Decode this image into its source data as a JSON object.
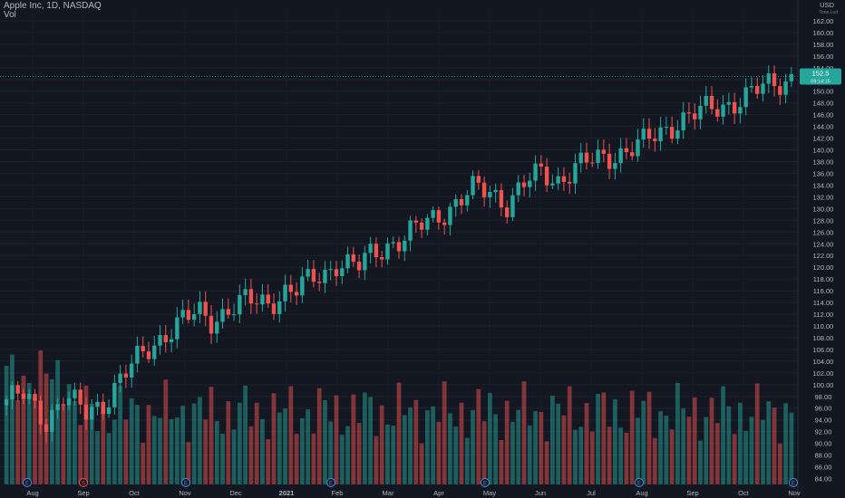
{
  "legend": {
    "title": "Apple Inc, 1D, NASDAQ",
    "volume_label": "Vol"
  },
  "axis": {
    "currency": "USD",
    "currency_sub": "Tone.Lod",
    "last_price": "152.5",
    "last_price_sub": "09:14:15"
  },
  "chart_data": {
    "type": "candlestick",
    "title": "Apple Inc, 1D, NASDAQ",
    "ylabel": "USD",
    "ylim": [
      83,
      164
    ],
    "y_ticks": [
      84.0,
      86.0,
      88.0,
      90.0,
      92.0,
      94.0,
      96.0,
      98.0,
      100.0,
      102.0,
      104.0,
      106.0,
      108.0,
      110.0,
      112.0,
      114.0,
      116.0,
      118.0,
      120.0,
      122.0,
      124.0,
      126.0,
      128.0,
      130.0,
      132.0,
      134.0,
      136.0,
      138.0,
      140.0,
      142.0,
      144.0,
      146.0,
      148.0,
      150.0,
      152.0,
      154.0,
      156.0,
      158.0,
      160.0,
      162.0
    ],
    "x_labels": [
      "Aug",
      "Sep",
      "Oct",
      "Nov",
      "Dec",
      "2021",
      "Feb",
      "Mar",
      "Apr",
      "May",
      "Jun",
      "Jul",
      "Aug",
      "Sep",
      "Oct",
      "Nov"
    ],
    "up_color": "#26a69a",
    "down_color": "#ef5350",
    "last_price": 152.5,
    "anchors": [
      [
        0,
        97.5
      ],
      [
        3,
        98
      ],
      [
        5,
        96
      ],
      [
        7,
        94
      ],
      [
        10,
        98
      ],
      [
        14,
        95
      ],
      [
        17,
        97
      ],
      [
        20,
        101
      ],
      [
        23,
        104
      ],
      [
        26,
        107
      ],
      [
        28,
        109
      ],
      [
        31,
        111
      ],
      [
        34,
        112
      ],
      [
        36,
        111
      ],
      [
        39,
        113
      ],
      [
        42,
        114
      ],
      [
        46,
        114
      ],
      [
        49,
        116
      ],
      [
        51,
        116
      ],
      [
        54,
        118
      ],
      [
        56,
        119
      ],
      [
        58,
        121
      ],
      [
        62,
        120
      ],
      [
        64,
        122
      ],
      [
        67,
        124
      ],
      [
        70,
        125
      ],
      [
        73,
        127
      ],
      [
        76,
        129
      ],
      [
        79,
        131
      ],
      [
        82,
        133
      ],
      [
        85,
        133
      ],
      [
        88,
        131
      ],
      [
        91,
        134
      ],
      [
        94,
        136
      ],
      [
        97,
        135
      ],
      [
        100,
        137
      ],
      [
        103,
        138
      ],
      [
        106,
        139
      ],
      [
        109,
        140
      ],
      [
        112,
        141
      ],
      [
        115,
        143
      ],
      [
        118,
        145
      ],
      [
        121,
        146
      ],
      [
        124,
        147
      ],
      [
        127,
        148
      ],
      [
        130,
        149
      ],
      [
        134,
        151
      ],
      [
        138,
        152.5
      ]
    ],
    "volume_ylim": [
      0,
      110
    ],
    "event_markers": [
      {
        "x_label": "Aug",
        "symbol": "E",
        "color": "#4c8fd8"
      },
      {
        "x_label": "Sep",
        "symbol": "S",
        "color": "#ef5350"
      },
      {
        "x_label": "Nov",
        "symbol": "E",
        "color": "#4c8fd8"
      },
      {
        "x_label": "Feb",
        "symbol": "E",
        "color": "#4c8fd8"
      },
      {
        "x_label": "May",
        "symbol": "E",
        "color": "#4c8fd8"
      },
      {
        "x_label": "Aug",
        "symbol": "E",
        "color": "#4c8fd8"
      },
      {
        "x_label": "Nov",
        "symbol": "E",
        "color": "#4c8fd8"
      }
    ],
    "grid": true
  }
}
